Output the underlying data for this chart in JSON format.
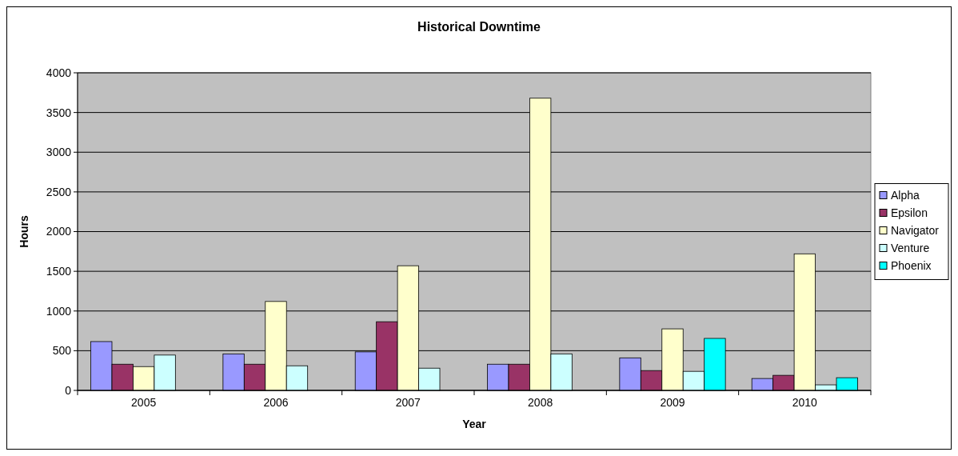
{
  "chart_data": {
    "type": "bar",
    "title": "Historical Downtime",
    "xlabel": "Year",
    "ylabel": "Hours",
    "categories": [
      "2005",
      "2006",
      "2007",
      "2008",
      "2009",
      "2010"
    ],
    "series": [
      {
        "name": "Alpha",
        "color": "#9999ff",
        "values": [
          615,
          460,
          485,
          330,
          410,
          150
        ]
      },
      {
        "name": "Epsilon",
        "color": "#993366",
        "values": [
          330,
          330,
          865,
          330,
          250,
          190
        ]
      },
      {
        "name": "Navigator",
        "color": "#ffffcc",
        "values": [
          300,
          1120,
          1570,
          3680,
          775,
          1720
        ]
      },
      {
        "name": "Venture",
        "color": "#ccffff",
        "values": [
          445,
          310,
          280,
          460,
          240,
          70
        ]
      },
      {
        "name": "Phoenix",
        "color": "#00ffff",
        "values": [
          null,
          null,
          null,
          null,
          655,
          160
        ]
      }
    ],
    "ylim": [
      0,
      4000
    ],
    "yticks": [
      0,
      500,
      1000,
      1500,
      2000,
      2500,
      3000,
      3500,
      4000
    ],
    "grid": "y",
    "legend": "right"
  }
}
